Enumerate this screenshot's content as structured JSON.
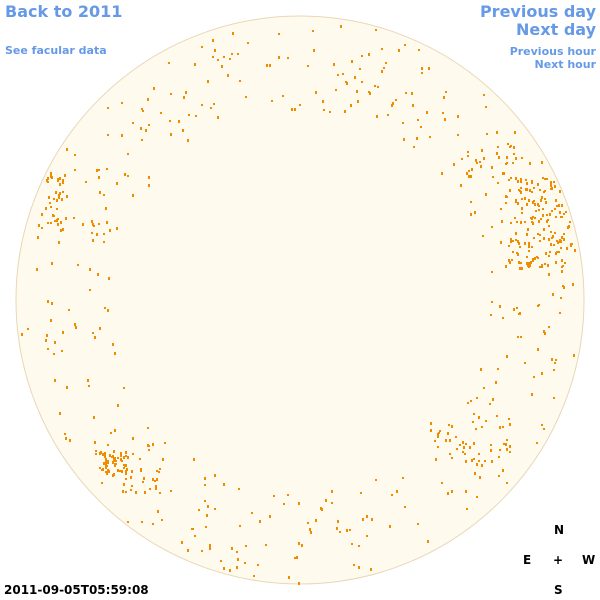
{
  "nav": {
    "back_label": "Back to 2011",
    "facular_label": "See facular data",
    "prev_day_label": "Previous day",
    "next_day_label": "Next day",
    "prev_hour_label": "Previous hour",
    "next_hour_label": "Next hour"
  },
  "compass": {
    "north": "N",
    "east": "E",
    "west": "W",
    "south": "S",
    "center": "+"
  },
  "timestamp": "2011-09-05T05:59:08",
  "colors": {
    "link": "#6699e6",
    "disk_fill": "#fffaee",
    "disk_edge": "#e8d7b8",
    "feature": "#f08c00"
  }
}
